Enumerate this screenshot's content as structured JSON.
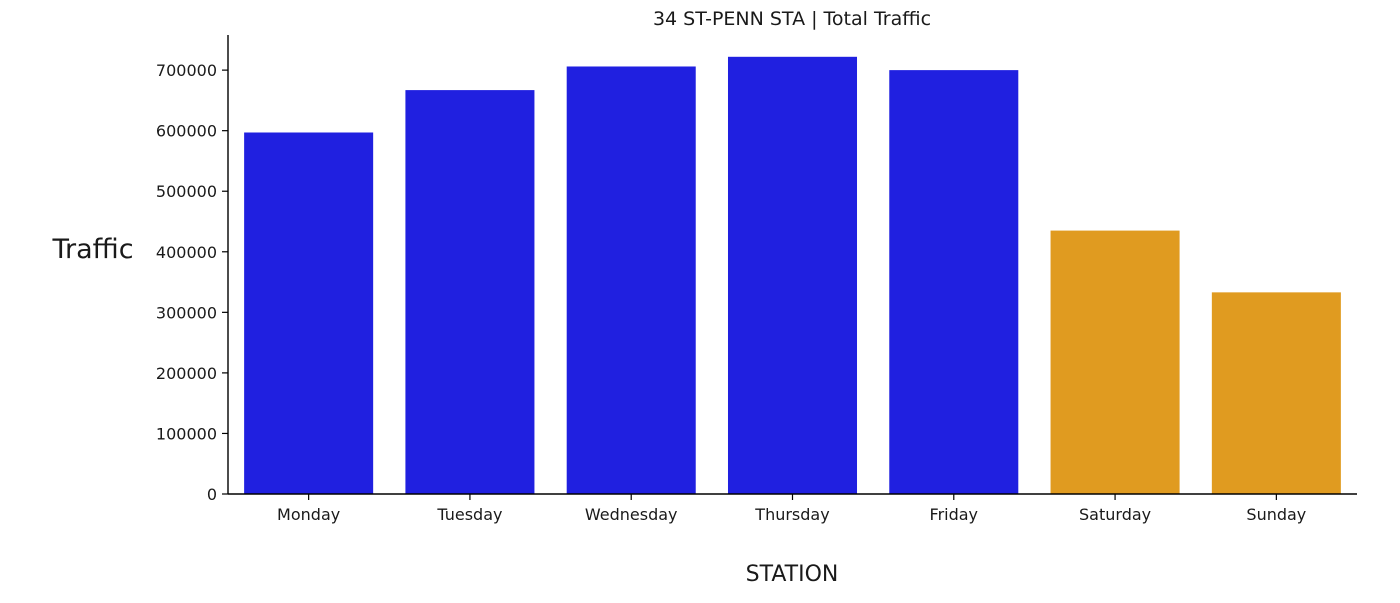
{
  "chart_data": {
    "type": "bar",
    "title": "34 ST-PENN STA | Total Traffic",
    "xlabel": "STATION",
    "ylabel": "Traffic",
    "categories": [
      "Monday",
      "Tuesday",
      "Wednesday",
      "Thursday",
      "Friday",
      "Saturday",
      "Sunday"
    ],
    "values": [
      597000,
      667000,
      706000,
      722000,
      700000,
      435000,
      333000
    ],
    "bar_colors": [
      "#2020e0",
      "#2020e0",
      "#2020e0",
      "#2020e0",
      "#2020e0",
      "#e09b20",
      "#e09b20"
    ],
    "yticks": [
      0,
      100000,
      200000,
      300000,
      400000,
      500000,
      600000,
      700000
    ],
    "ylim": [
      0,
      758000
    ],
    "grid": false,
    "legend": false
  }
}
